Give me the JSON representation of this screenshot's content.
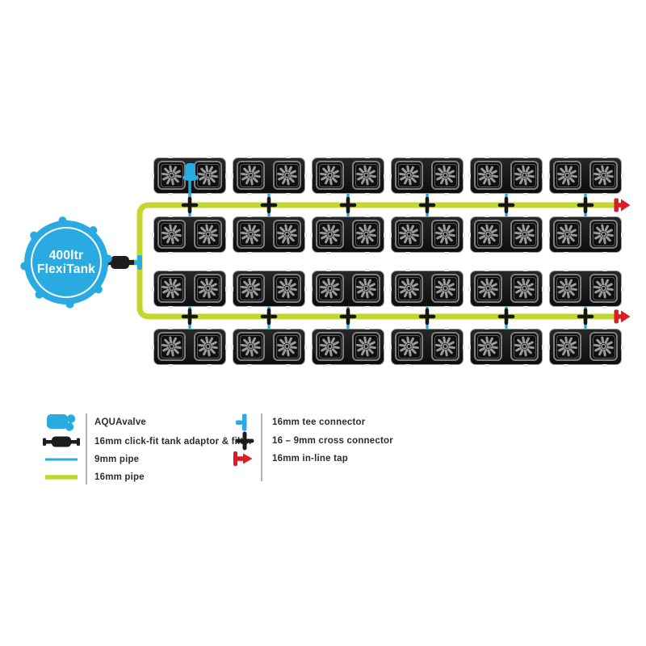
{
  "tank": {
    "line1": "400ltr",
    "line2": "FlexiTank"
  },
  "diagram": {
    "rows": 4,
    "trays_per_row": 6,
    "pots_per_tray": 2,
    "valves_shown": 1,
    "inline_taps": 2,
    "cross_connectors_per_run": 6
  },
  "legend": {
    "left": [
      {
        "icon": "aquavalve-icon",
        "label": "AQUAvalve"
      },
      {
        "icon": "tank-adaptor-icon",
        "label": "16mm click-fit tank adaptor & filter"
      },
      {
        "icon": "9mm-pipe-icon",
        "label": "9mm pipe"
      },
      {
        "icon": "16mm-pipe-icon",
        "label": "16mm pipe"
      }
    ],
    "right": [
      {
        "icon": "tee-connector-icon",
        "label": "16mm tee connector"
      },
      {
        "icon": "cross-connector-icon",
        "label": "16 – 9mm cross connector"
      },
      {
        "icon": "inline-tap-icon",
        "label": "16mm in-line tap"
      }
    ]
  },
  "colors": {
    "blue": "#29abe2",
    "green": "#c3d62e",
    "red": "#dd1c23",
    "dark": "#1c1c1c",
    "text": "#2d2d2d"
  }
}
